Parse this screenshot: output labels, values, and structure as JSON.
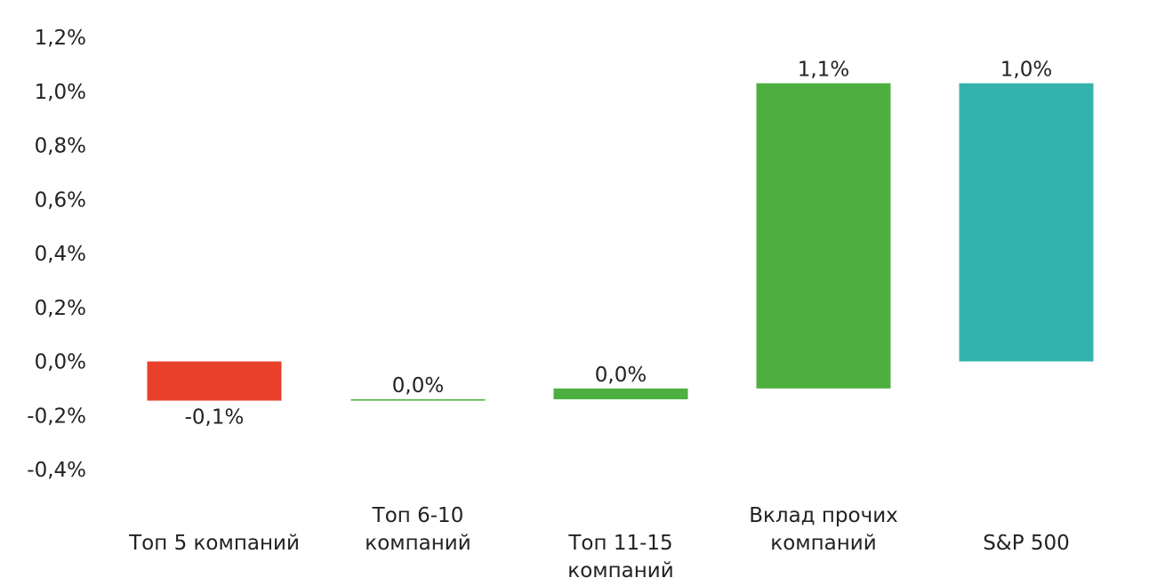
{
  "chart_data": {
    "type": "waterfall",
    "categories": [
      [
        "Топ 5 компаний"
      ],
      [
        "Топ 6-10",
        "компаний"
      ],
      [
        "Топ 11-15",
        "компаний"
      ],
      [
        "Вклад прочих",
        "компаний"
      ],
      [
        "S&P 500"
      ]
    ],
    "bars": [
      {
        "start": 0.0,
        "end": -0.145,
        "label": "-0,1%",
        "color": "#e8402b"
      },
      {
        "start": -0.145,
        "end": -0.14,
        "label": "0,0%",
        "color": "#4daf3f"
      },
      {
        "start": -0.14,
        "end": -0.1,
        "label": "0,0%",
        "color": "#4daf3f"
      },
      {
        "start": -0.1,
        "end": 1.03,
        "label": "1,1%",
        "color": "#4daf3f"
      },
      {
        "start": 0.0,
        "end": 1.03,
        "label": "1,0%",
        "color": "#34b3ac"
      }
    ],
    "y_ticks": [
      "1,2%",
      "1,0%",
      "0,8%",
      "0,6%",
      "0,4%",
      "0,2%",
      "0,0%",
      "-0,2%",
      "-0,4%"
    ],
    "y_tick_values": [
      1.2,
      1.0,
      0.8,
      0.6,
      0.4,
      0.2,
      0.0,
      -0.2,
      -0.4
    ],
    "ylim": [
      -0.4,
      1.2
    ],
    "grid": false,
    "title": "",
    "xlabel": "",
    "ylabel": ""
  }
}
